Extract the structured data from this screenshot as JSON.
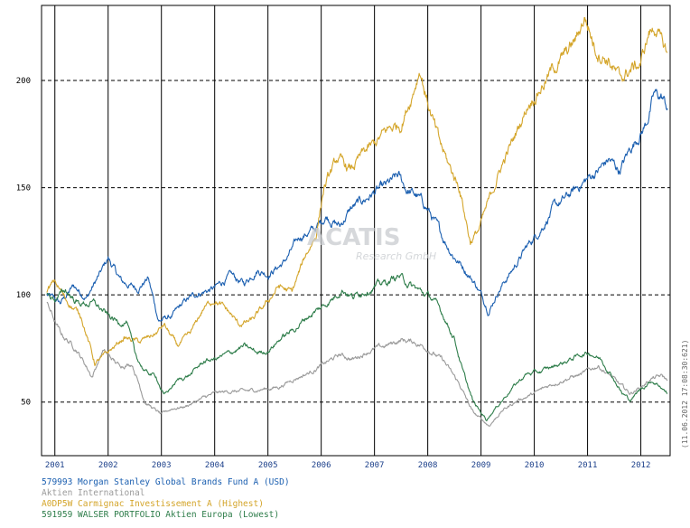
{
  "watermark": {
    "title": "ACATIS",
    "subtitle": "Research GmbH"
  },
  "stamp": "(11.06.2012 17:08:30:621)",
  "legend": [
    {
      "text": "579993 Morgan Stanley Global Brands Fund A (USD)",
      "color": "#1b5fb0"
    },
    {
      "text": "Aktien International",
      "color": "#9a9a9a"
    },
    {
      "text": "A0DP5W Carmignac Investissement A (Highest)",
      "color": "#d4a52a"
    },
    {
      "text": "591959 WALSER PORTFOLIO Aktien Europa (Lowest)",
      "color": "#2e7d4a"
    }
  ],
  "chart_data": {
    "type": "line",
    "xlim": [
      2000.75,
      2012.55
    ],
    "ylim": [
      25,
      235
    ],
    "x_ticks": [
      "2001",
      "2002",
      "2003",
      "2004",
      "2005",
      "2006",
      "2007",
      "2008",
      "2009",
      "2010",
      "2011",
      "2012"
    ],
    "y_ticks": [
      50,
      100,
      150,
      200
    ],
    "grid": "vertical solid at year starts, horizontal dashed at y ticks",
    "series": [
      {
        "name": "579993 Morgan Stanley Global Brands Fund A (USD)",
        "color": "#1b5fb0",
        "points": [
          [
            2000.85,
            100
          ],
          [
            2001.1,
            96
          ],
          [
            2001.35,
            104
          ],
          [
            2001.6,
            99
          ],
          [
            2001.9,
            112
          ],
          [
            2002.0,
            117
          ],
          [
            2002.25,
            106
          ],
          [
            2002.55,
            103
          ],
          [
            2002.75,
            108
          ],
          [
            2002.95,
            88
          ],
          [
            2003.2,
            90
          ],
          [
            2003.45,
            97
          ],
          [
            2003.7,
            101
          ],
          [
            2004.0,
            103
          ],
          [
            2004.3,
            109
          ],
          [
            2004.55,
            105
          ],
          [
            2004.8,
            112
          ],
          [
            2005.0,
            110
          ],
          [
            2005.3,
            115
          ],
          [
            2005.6,
            127
          ],
          [
            2005.9,
            131
          ],
          [
            2006.1,
            137
          ],
          [
            2006.35,
            132
          ],
          [
            2006.55,
            140
          ],
          [
            2006.8,
            144
          ],
          [
            2007.0,
            148
          ],
          [
            2007.2,
            150
          ],
          [
            2007.45,
            155
          ],
          [
            2007.6,
            149
          ],
          [
            2007.8,
            146
          ],
          [
            2008.0,
            140
          ],
          [
            2008.25,
            128
          ],
          [
            2008.5,
            118
          ],
          [
            2008.7,
            112
          ],
          [
            2008.9,
            105
          ],
          [
            2009.15,
            93
          ],
          [
            2009.35,
            103
          ],
          [
            2009.6,
            112
          ],
          [
            2009.85,
            122
          ],
          [
            2010.1,
            130
          ],
          [
            2010.35,
            140
          ],
          [
            2010.6,
            145
          ],
          [
            2010.9,
            152
          ],
          [
            2011.2,
            158
          ],
          [
            2011.4,
            163
          ],
          [
            2011.6,
            158
          ],
          [
            2011.8,
            168
          ],
          [
            2012.1,
            180
          ],
          [
            2012.25,
            193
          ],
          [
            2012.4,
            192
          ],
          [
            2012.5,
            187
          ]
        ]
      },
      {
        "name": "Aktien International",
        "color": "#9a9a9a",
        "points": [
          [
            2000.85,
            96
          ],
          [
            2001.1,
            82
          ],
          [
            2001.4,
            75
          ],
          [
            2001.7,
            62
          ],
          [
            2001.9,
            74
          ],
          [
            2002.2,
            67
          ],
          [
            2002.45,
            68
          ],
          [
            2002.7,
            50
          ],
          [
            2003.0,
            44
          ],
          [
            2003.2,
            47
          ],
          [
            2003.45,
            48
          ],
          [
            2003.7,
            51
          ],
          [
            2004.0,
            54
          ],
          [
            2004.3,
            55
          ],
          [
            2004.6,
            55
          ],
          [
            2004.9,
            56
          ],
          [
            2005.2,
            57
          ],
          [
            2005.5,
            61
          ],
          [
            2005.8,
            64
          ],
          [
            2006.0,
            67
          ],
          [
            2006.35,
            72
          ],
          [
            2006.6,
            70
          ],
          [
            2006.9,
            74
          ],
          [
            2007.2,
            76
          ],
          [
            2007.5,
            79
          ],
          [
            2007.75,
            78
          ],
          [
            2008.0,
            75
          ],
          [
            2008.3,
            69
          ],
          [
            2008.6,
            58
          ],
          [
            2008.85,
            45
          ],
          [
            2009.15,
            39
          ],
          [
            2009.4,
            46
          ],
          [
            2009.7,
            51
          ],
          [
            2010.0,
            54
          ],
          [
            2010.3,
            58
          ],
          [
            2010.6,
            61
          ],
          [
            2010.9,
            63
          ],
          [
            2011.2,
            67
          ],
          [
            2011.4,
            63
          ],
          [
            2011.6,
            58
          ],
          [
            2011.8,
            54
          ],
          [
            2012.0,
            57
          ],
          [
            2012.2,
            61
          ],
          [
            2012.4,
            62
          ],
          [
            2012.5,
            60
          ]
        ]
      },
      {
        "name": "A0DP5W Carmignac Investissement A (Highest)",
        "color": "#d4a52a",
        "points": [
          [
            2000.85,
            102
          ],
          [
            2001.0,
            106
          ],
          [
            2001.2,
            98
          ],
          [
            2001.5,
            90
          ],
          [
            2001.75,
            68
          ],
          [
            2002.0,
            73
          ],
          [
            2002.3,
            80
          ],
          [
            2002.6,
            78
          ],
          [
            2002.9,
            82
          ],
          [
            2003.05,
            86
          ],
          [
            2003.3,
            76
          ],
          [
            2003.55,
            82
          ],
          [
            2003.8,
            94
          ],
          [
            2004.0,
            98
          ],
          [
            2004.3,
            91
          ],
          [
            2004.45,
            86
          ],
          [
            2004.7,
            88
          ],
          [
            2004.95,
            95
          ],
          [
            2005.2,
            104
          ],
          [
            2005.45,
            101
          ],
          [
            2005.7,
            118
          ],
          [
            2005.9,
            128
          ],
          [
            2006.05,
            150
          ],
          [
            2006.3,
            163
          ],
          [
            2006.55,
            158
          ],
          [
            2006.8,
            166
          ],
          [
            2007.0,
            170
          ],
          [
            2007.25,
            177
          ],
          [
            2007.5,
            180
          ],
          [
            2007.7,
            193
          ],
          [
            2007.85,
            206
          ],
          [
            2008.0,
            190
          ],
          [
            2008.2,
            172
          ],
          [
            2008.4,
            160
          ],
          [
            2008.6,
            150
          ],
          [
            2008.8,
            125
          ],
          [
            2008.95,
            130
          ],
          [
            2009.1,
            140
          ],
          [
            2009.35,
            158
          ],
          [
            2009.6,
            172
          ],
          [
            2009.9,
            190
          ],
          [
            2010.15,
            198
          ],
          [
            2010.4,
            207
          ],
          [
            2010.6,
            212
          ],
          [
            2010.8,
            220
          ],
          [
            2010.95,
            230
          ],
          [
            2011.15,
            215
          ],
          [
            2011.4,
            210
          ],
          [
            2011.6,
            200
          ],
          [
            2011.8,
            205
          ],
          [
            2012.0,
            208
          ],
          [
            2012.15,
            222
          ],
          [
            2012.3,
            225
          ],
          [
            2012.4,
            216
          ],
          [
            2012.5,
            213
          ]
        ]
      },
      {
        "name": "591959 WALSER PORTFOLIO Aktien Europa (Lowest)",
        "color": "#2e7d4a",
        "points": [
          [
            2000.85,
            100
          ],
          [
            2001.0,
            98
          ],
          [
            2001.2,
            102
          ],
          [
            2001.45,
            96
          ],
          [
            2001.75,
            96
          ],
          [
            2002.0,
            90
          ],
          [
            2002.2,
            87
          ],
          [
            2002.35,
            88
          ],
          [
            2002.5,
            72
          ],
          [
            2002.7,
            64
          ],
          [
            2002.9,
            62
          ],
          [
            2003.05,
            53
          ],
          [
            2003.3,
            60
          ],
          [
            2003.55,
            63
          ],
          [
            2003.8,
            69
          ],
          [
            2004.0,
            70
          ],
          [
            2004.3,
            73
          ],
          [
            2004.55,
            76
          ],
          [
            2004.8,
            73
          ],
          [
            2005.0,
            74
          ],
          [
            2005.25,
            80
          ],
          [
            2005.5,
            84
          ],
          [
            2005.75,
            90
          ],
          [
            2006.0,
            94
          ],
          [
            2006.2,
            98
          ],
          [
            2006.4,
            103
          ],
          [
            2006.6,
            99
          ],
          [
            2006.8,
            102
          ],
          [
            2007.0,
            104
          ],
          [
            2007.25,
            106
          ],
          [
            2007.45,
            109
          ],
          [
            2007.7,
            104
          ],
          [
            2007.9,
            101
          ],
          [
            2008.1,
            98
          ],
          [
            2008.3,
            90
          ],
          [
            2008.5,
            80
          ],
          [
            2008.65,
            65
          ],
          [
            2008.85,
            50
          ],
          [
            2009.1,
            42
          ],
          [
            2009.3,
            48
          ],
          [
            2009.6,
            57
          ],
          [
            2009.85,
            63
          ],
          [
            2010.1,
            64
          ],
          [
            2010.4,
            67
          ],
          [
            2010.6,
            69
          ],
          [
            2010.85,
            72
          ],
          [
            2011.05,
            73
          ],
          [
            2011.25,
            70
          ],
          [
            2011.45,
            63
          ],
          [
            2011.65,
            54
          ],
          [
            2011.8,
            51
          ],
          [
            2012.0,
            56
          ],
          [
            2012.2,
            60
          ],
          [
            2012.35,
            58
          ],
          [
            2012.5,
            54
          ]
        ]
      }
    ]
  }
}
